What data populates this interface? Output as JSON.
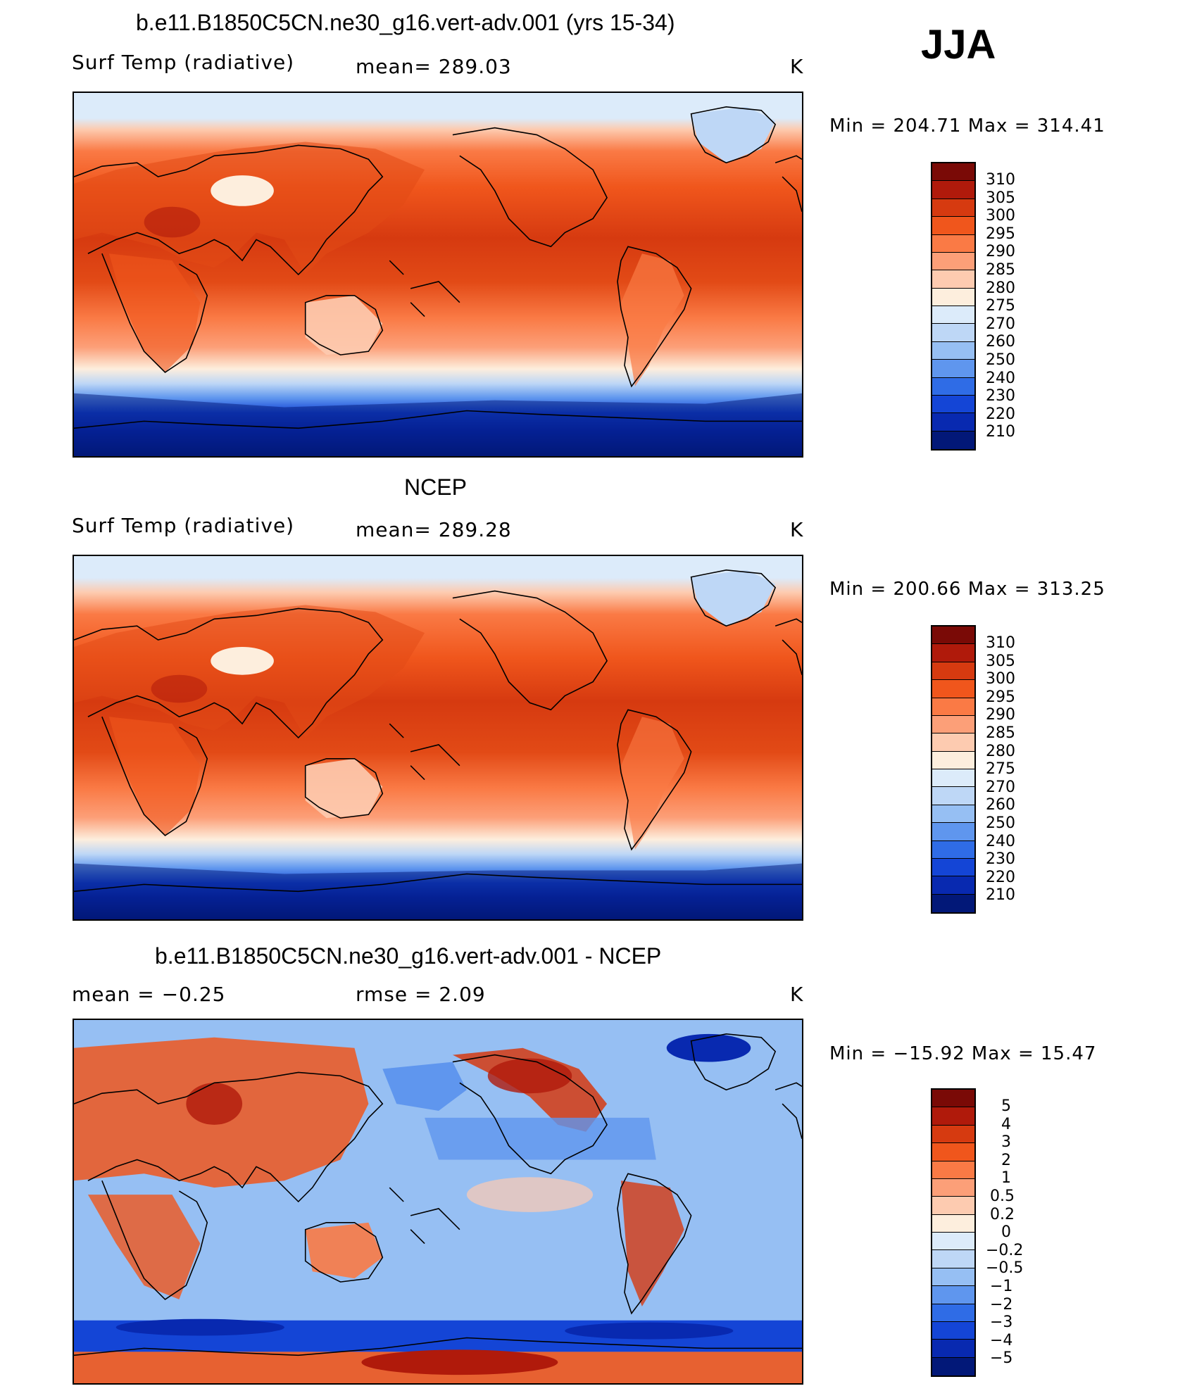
{
  "season": "JJA",
  "panels": [
    {
      "title": "b.e11.B1850C5CN.ne30_g16.vert-adv.001 (yrs 15-34)",
      "left_label": "Surf Temp (radiative)",
      "center_label": "mean= 289.03",
      "units": "K",
      "minmax": "Min = 204.71 Max = 314.41",
      "colorbar_labels": [
        "310",
        "305",
        "300",
        "295",
        "290",
        "285",
        "280",
        "275",
        "270",
        "260",
        "250",
        "240",
        "230",
        "220",
        "210"
      ],
      "colors": [
        "#7a0a06",
        "#b01a0b",
        "#d63a10",
        "#f0561c",
        "#fa7a45",
        "#fc9f78",
        "#fdcbb0",
        "#fdeedd",
        "#dcebfa",
        "#bed7f6",
        "#96bff3",
        "#5f96ee",
        "#2f6ce6",
        "#1445d6",
        "#0829b0",
        "#021878"
      ]
    },
    {
      "title": "NCEP",
      "left_label": "Surf Temp (radiative)",
      "center_label": "mean= 289.28",
      "units": "K",
      "minmax": "Min = 200.66 Max = 313.25",
      "colorbar_labels": [
        "310",
        "305",
        "300",
        "295",
        "290",
        "285",
        "280",
        "275",
        "270",
        "260",
        "250",
        "240",
        "230",
        "220",
        "210"
      ],
      "colors": [
        "#7a0a06",
        "#b01a0b",
        "#d63a10",
        "#f0561c",
        "#fa7a45",
        "#fc9f78",
        "#fdcbb0",
        "#fdeedd",
        "#dcebfa",
        "#bed7f6",
        "#96bff3",
        "#5f96ee",
        "#2f6ce6",
        "#1445d6",
        "#0829b0",
        "#021878"
      ]
    },
    {
      "title": "b.e11.B1850C5CN.ne30_g16.vert-adv.001 - NCEP",
      "left_label": "mean =   −0.25",
      "center_label": "rmse =    2.09",
      "units": "K",
      "minmax": "Min = −15.92 Max =  15.47",
      "colorbar_labels": [
        "5",
        "4",
        "3",
        "2",
        "1",
        "0.5",
        "0.2",
        "0",
        "−0.2",
        "−0.5",
        "−1",
        "−2",
        "−3",
        "−4",
        "−5"
      ],
      "colors": [
        "#7a0a06",
        "#b01a0b",
        "#d63a10",
        "#f0561c",
        "#fa7a45",
        "#fc9f78",
        "#fdcbb0",
        "#fdeedd",
        "#dcebfa",
        "#bed7f6",
        "#96bff3",
        "#5f96ee",
        "#2f6ce6",
        "#1445d6",
        "#0829b0",
        "#021878"
      ]
    }
  ]
}
